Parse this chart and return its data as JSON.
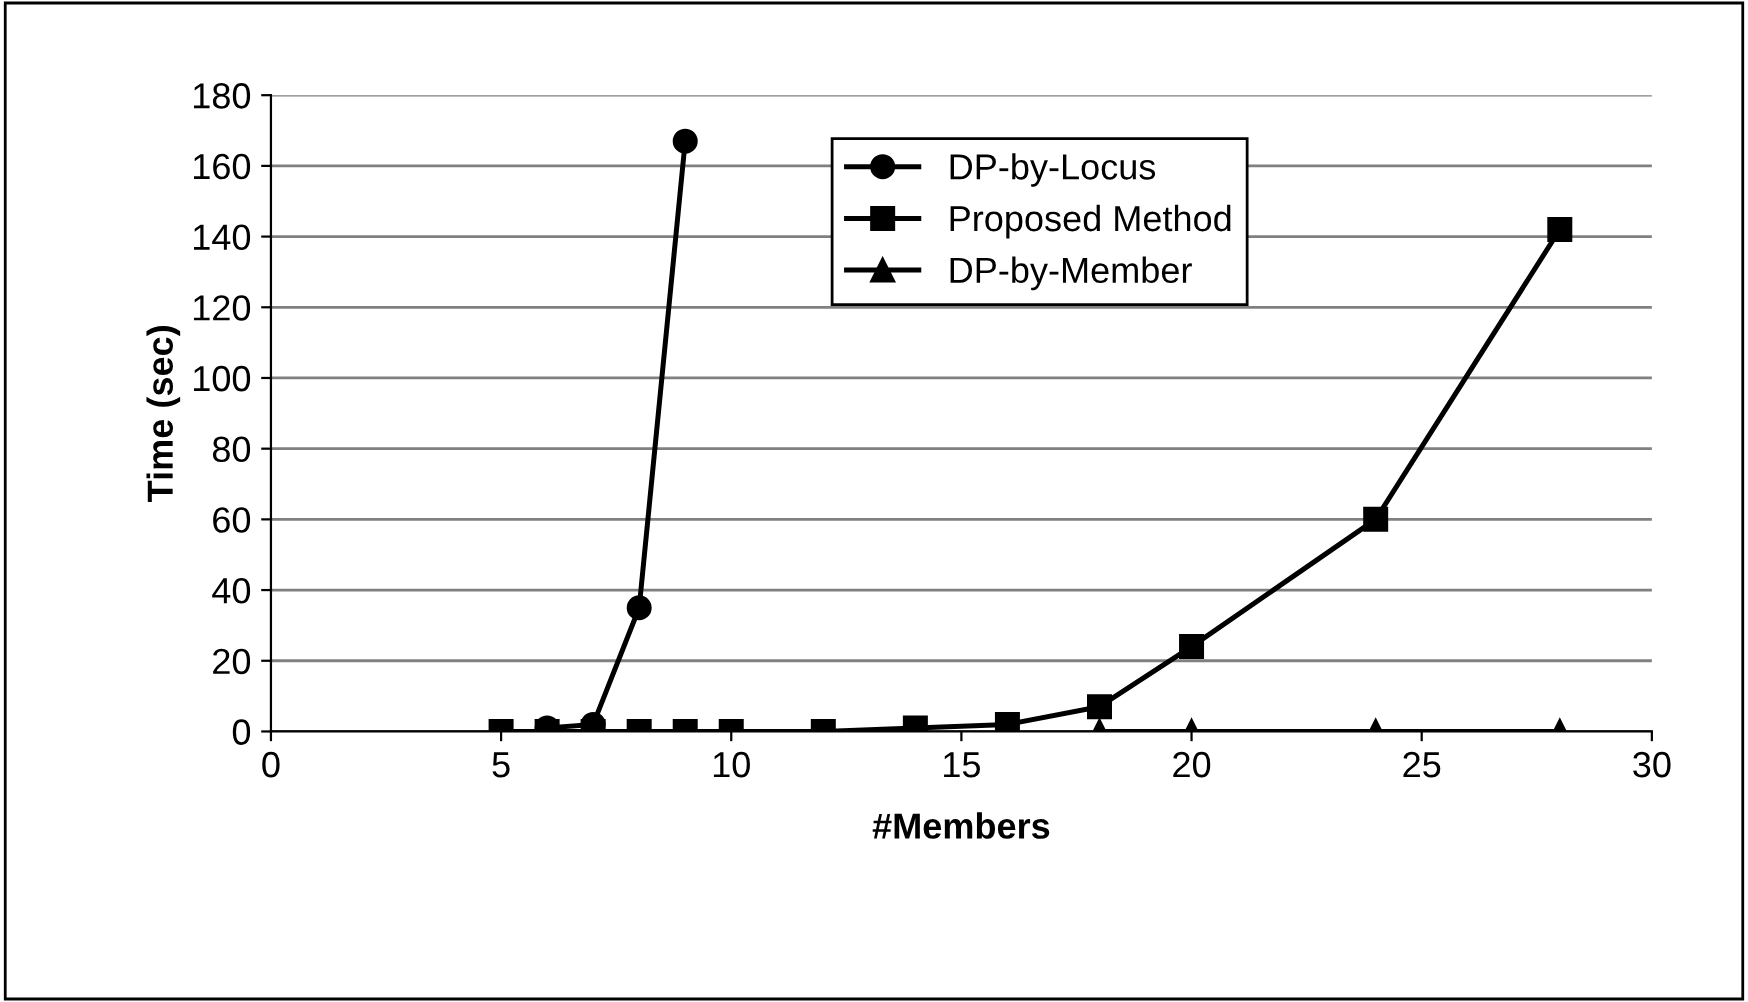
{
  "chart_data": {
    "type": "line",
    "xlabel": "#Members",
    "ylabel": "Time (sec)",
    "xlim": [
      0,
      30
    ],
    "xticks": [
      0,
      5,
      10,
      15,
      20,
      25,
      30
    ],
    "ylim": [
      0,
      180
    ],
    "yticks": [
      0,
      20,
      40,
      60,
      80,
      100,
      120,
      140,
      160,
      180
    ],
    "grid": "y",
    "legend": "top right",
    "series": [
      {
        "name": "DP-by-Locus",
        "color": "#000000",
        "marker": "circle",
        "x": [
          6,
          7,
          8,
          9
        ],
        "values": [
          1,
          2,
          35,
          167
        ]
      },
      {
        "name": "Proposed Method",
        "color": "#000000",
        "marker": "square",
        "x": [
          5,
          6,
          7,
          8,
          9,
          10,
          12,
          14,
          16,
          18,
          20,
          24,
          28
        ],
        "values": [
          0,
          0,
          0,
          0,
          0,
          0,
          0,
          1,
          2,
          7,
          24,
          60,
          142
        ]
      },
      {
        "name": "DP-by-Member",
        "color": "#000000",
        "marker": "triangle",
        "x": [
          18,
          20,
          24,
          28
        ],
        "values": [
          0,
          0,
          0,
          0
        ]
      }
    ]
  }
}
